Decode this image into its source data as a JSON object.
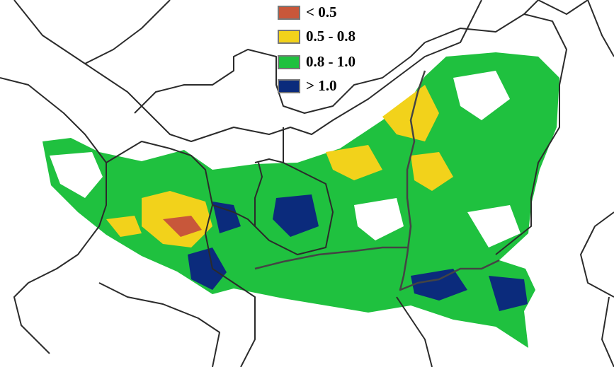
{
  "legend": {
    "items": [
      {
        "label": "< 0.5",
        "color": "#c8573a"
      },
      {
        "label": "0.5 - 0.8",
        "color": "#f2d21b"
      },
      {
        "label": "0.8 - 1.0",
        "color": "#1fc13f"
      },
      {
        "label": "> 1.0",
        "color": "#0b2b7c"
      }
    ]
  }
}
